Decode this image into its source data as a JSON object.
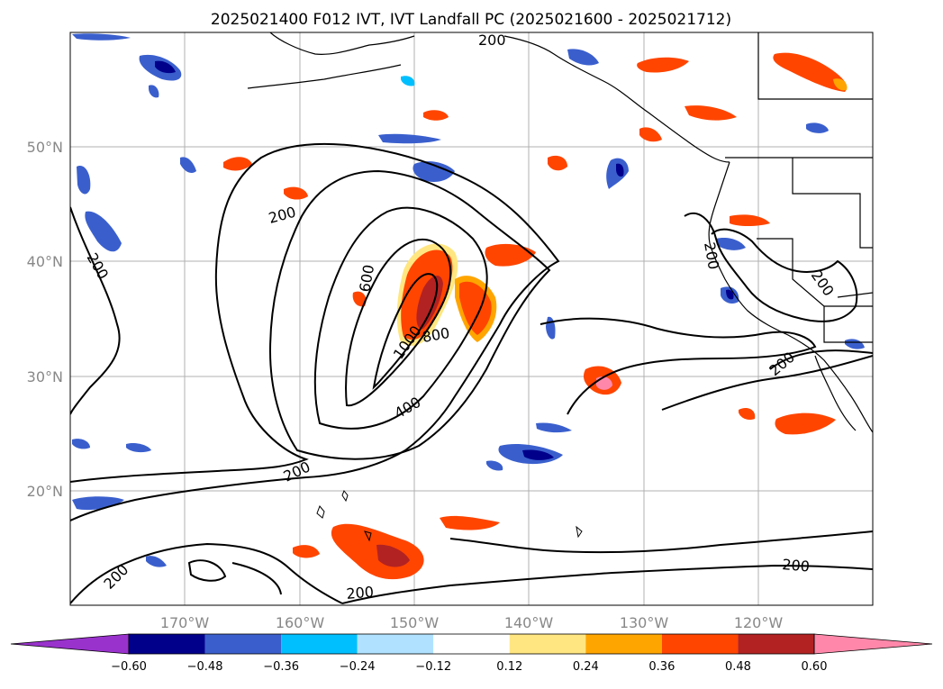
{
  "title": "2025021400 F012 IVT, IVT Landfall PC (2025021600 - 2025021712)",
  "map": {
    "lon_labels": [
      "170°W",
      "160°W",
      "150°W",
      "140°W",
      "130°W",
      "120°W"
    ],
    "lat_labels": [
      "50°N",
      "40°N",
      "30°N",
      "20°N"
    ],
    "contour_labels": [
      "200",
      "200",
      "200",
      "600",
      "1000",
      "800",
      "400",
      "200",
      "200",
      "200",
      "200",
      "200",
      "200",
      "200"
    ],
    "colors": {
      "contour": "#000000",
      "coast": "#000000",
      "grid": "#b0b0b0"
    }
  },
  "colorbar": {
    "tick_labels": [
      "−0.60",
      "−0.48",
      "−0.36",
      "−0.24",
      "−0.12",
      "0.12",
      "0.24",
      "0.36",
      "0.48",
      "0.60"
    ],
    "colors": [
      "#9932cc",
      "#00008b",
      "#3a5fcd",
      "#00bfff",
      "#b0e2ff",
      "#ffffff",
      "#ffe680",
      "#ffa500",
      "#ff4500",
      "#b22222",
      "#ff88aa"
    ]
  }
}
